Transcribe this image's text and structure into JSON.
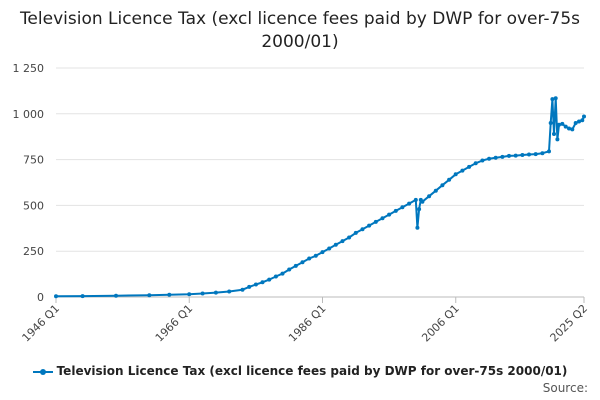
{
  "chart_data": {
    "type": "line",
    "title": "Television Licence Tax (excl licence fees paid by DWP for over-75s 2000/01)",
    "xlabel": "",
    "ylabel": "",
    "y_ticks": [
      "0",
      "250",
      "500",
      "750",
      "1 000",
      "1 250"
    ],
    "y_tick_values": [
      0,
      250,
      500,
      750,
      1000,
      1250
    ],
    "ylim": [
      0,
      1250
    ],
    "x_ticks": [
      "1946 Q1",
      "1966 Q1",
      "1986 Q1",
      "2006 Q1",
      "2025 Q2"
    ],
    "x_tick_values": [
      1946.0,
      1966.0,
      1986.0,
      2006.0,
      2025.25
    ],
    "xlim": [
      1946.0,
      2025.25
    ],
    "grid": true,
    "legend_position": "bottom",
    "series_color": "#0077be",
    "series": [
      {
        "name": "Television Licence Tax (excl licence fees paid by DWP for over-75s 2000/01)",
        "points": [
          [
            1946.0,
            4
          ],
          [
            1950.0,
            5
          ],
          [
            1955.0,
            7
          ],
          [
            1960.0,
            10
          ],
          [
            1963.0,
            12
          ],
          [
            1966.0,
            15
          ],
          [
            1968.0,
            19
          ],
          [
            1970.0,
            24
          ],
          [
            1972.0,
            30
          ],
          [
            1974.0,
            40
          ],
          [
            1975.0,
            55
          ],
          [
            1976.0,
            68
          ],
          [
            1977.0,
            80
          ],
          [
            1978.0,
            95
          ],
          [
            1979.0,
            112
          ],
          [
            1980.0,
            128
          ],
          [
            1981.0,
            150
          ],
          [
            1982.0,
            170
          ],
          [
            1983.0,
            190
          ],
          [
            1984.0,
            210
          ],
          [
            1985.0,
            225
          ],
          [
            1986.0,
            245
          ],
          [
            1987.0,
            265
          ],
          [
            1988.0,
            285
          ],
          [
            1989.0,
            305
          ],
          [
            1990.0,
            325
          ],
          [
            1991.0,
            350
          ],
          [
            1992.0,
            370
          ],
          [
            1993.0,
            390
          ],
          [
            1994.0,
            410
          ],
          [
            1995.0,
            430
          ],
          [
            1996.0,
            450
          ],
          [
            1997.0,
            470
          ],
          [
            1998.0,
            490
          ],
          [
            1999.0,
            510
          ],
          [
            2000.0,
            530
          ],
          [
            2000.25,
            378
          ],
          [
            2000.5,
            480
          ],
          [
            2000.75,
            530
          ],
          [
            2001.0,
            520
          ],
          [
            2002.0,
            550
          ],
          [
            2003.0,
            580
          ],
          [
            2004.0,
            610
          ],
          [
            2005.0,
            640
          ],
          [
            2006.0,
            670
          ],
          [
            2007.0,
            690
          ],
          [
            2008.0,
            710
          ],
          [
            2009.0,
            730
          ],
          [
            2010.0,
            745
          ],
          [
            2011.0,
            755
          ],
          [
            2012.0,
            760
          ],
          [
            2013.0,
            765
          ],
          [
            2014.0,
            770
          ],
          [
            2015.0,
            772
          ],
          [
            2016.0,
            775
          ],
          [
            2017.0,
            778
          ],
          [
            2018.0,
            780
          ],
          [
            2019.0,
            785
          ],
          [
            2020.0,
            795
          ],
          [
            2020.25,
            950
          ],
          [
            2020.5,
            1080
          ],
          [
            2020.75,
            890
          ],
          [
            2021.0,
            1085
          ],
          [
            2021.25,
            860
          ],
          [
            2021.5,
            940
          ],
          [
            2022.0,
            945
          ],
          [
            2022.5,
            930
          ],
          [
            2023.0,
            920
          ],
          [
            2023.5,
            915
          ],
          [
            2024.0,
            950
          ],
          [
            2024.5,
            958
          ],
          [
            2025.0,
            965
          ],
          [
            2025.25,
            985
          ]
        ]
      }
    ]
  },
  "legend": {
    "label": "Television Licence Tax (excl licence fees paid by DWP for over-75s 2000/01)"
  },
  "footer": {
    "source_label": "Source:"
  }
}
